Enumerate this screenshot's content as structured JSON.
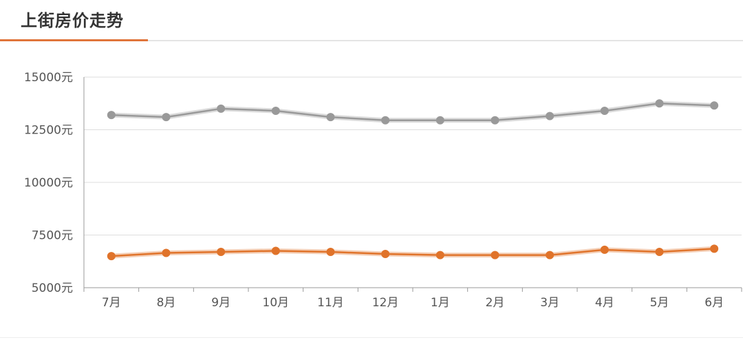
{
  "header": {
    "title": "上街房价走势"
  },
  "colors": {
    "accent": "#e0743a",
    "series_gray": "#999999",
    "series_orange": "#e0732a"
  },
  "chart_data": {
    "type": "line",
    "title": "上街房价走势",
    "categories": [
      "7月",
      "8月",
      "9月",
      "10月",
      "11月",
      "12月",
      "1月",
      "2月",
      "3月",
      "4月",
      "5月",
      "6月"
    ],
    "y_ticks": [
      "15000元",
      "12500元",
      "10000元",
      "7500元",
      "5000元"
    ],
    "ylim": [
      5000,
      15000
    ],
    "grid": true,
    "series": [
      {
        "color": "#999999",
        "values": [
          13200,
          13100,
          13500,
          13400,
          13100,
          12950,
          12950,
          12950,
          13150,
          13400,
          13750,
          13650
        ]
      },
      {
        "color": "#e0732a",
        "values": [
          6500,
          6650,
          6700,
          6750,
          6700,
          6600,
          6550,
          6550,
          6550,
          6800,
          6700,
          6850
        ]
      }
    ]
  }
}
